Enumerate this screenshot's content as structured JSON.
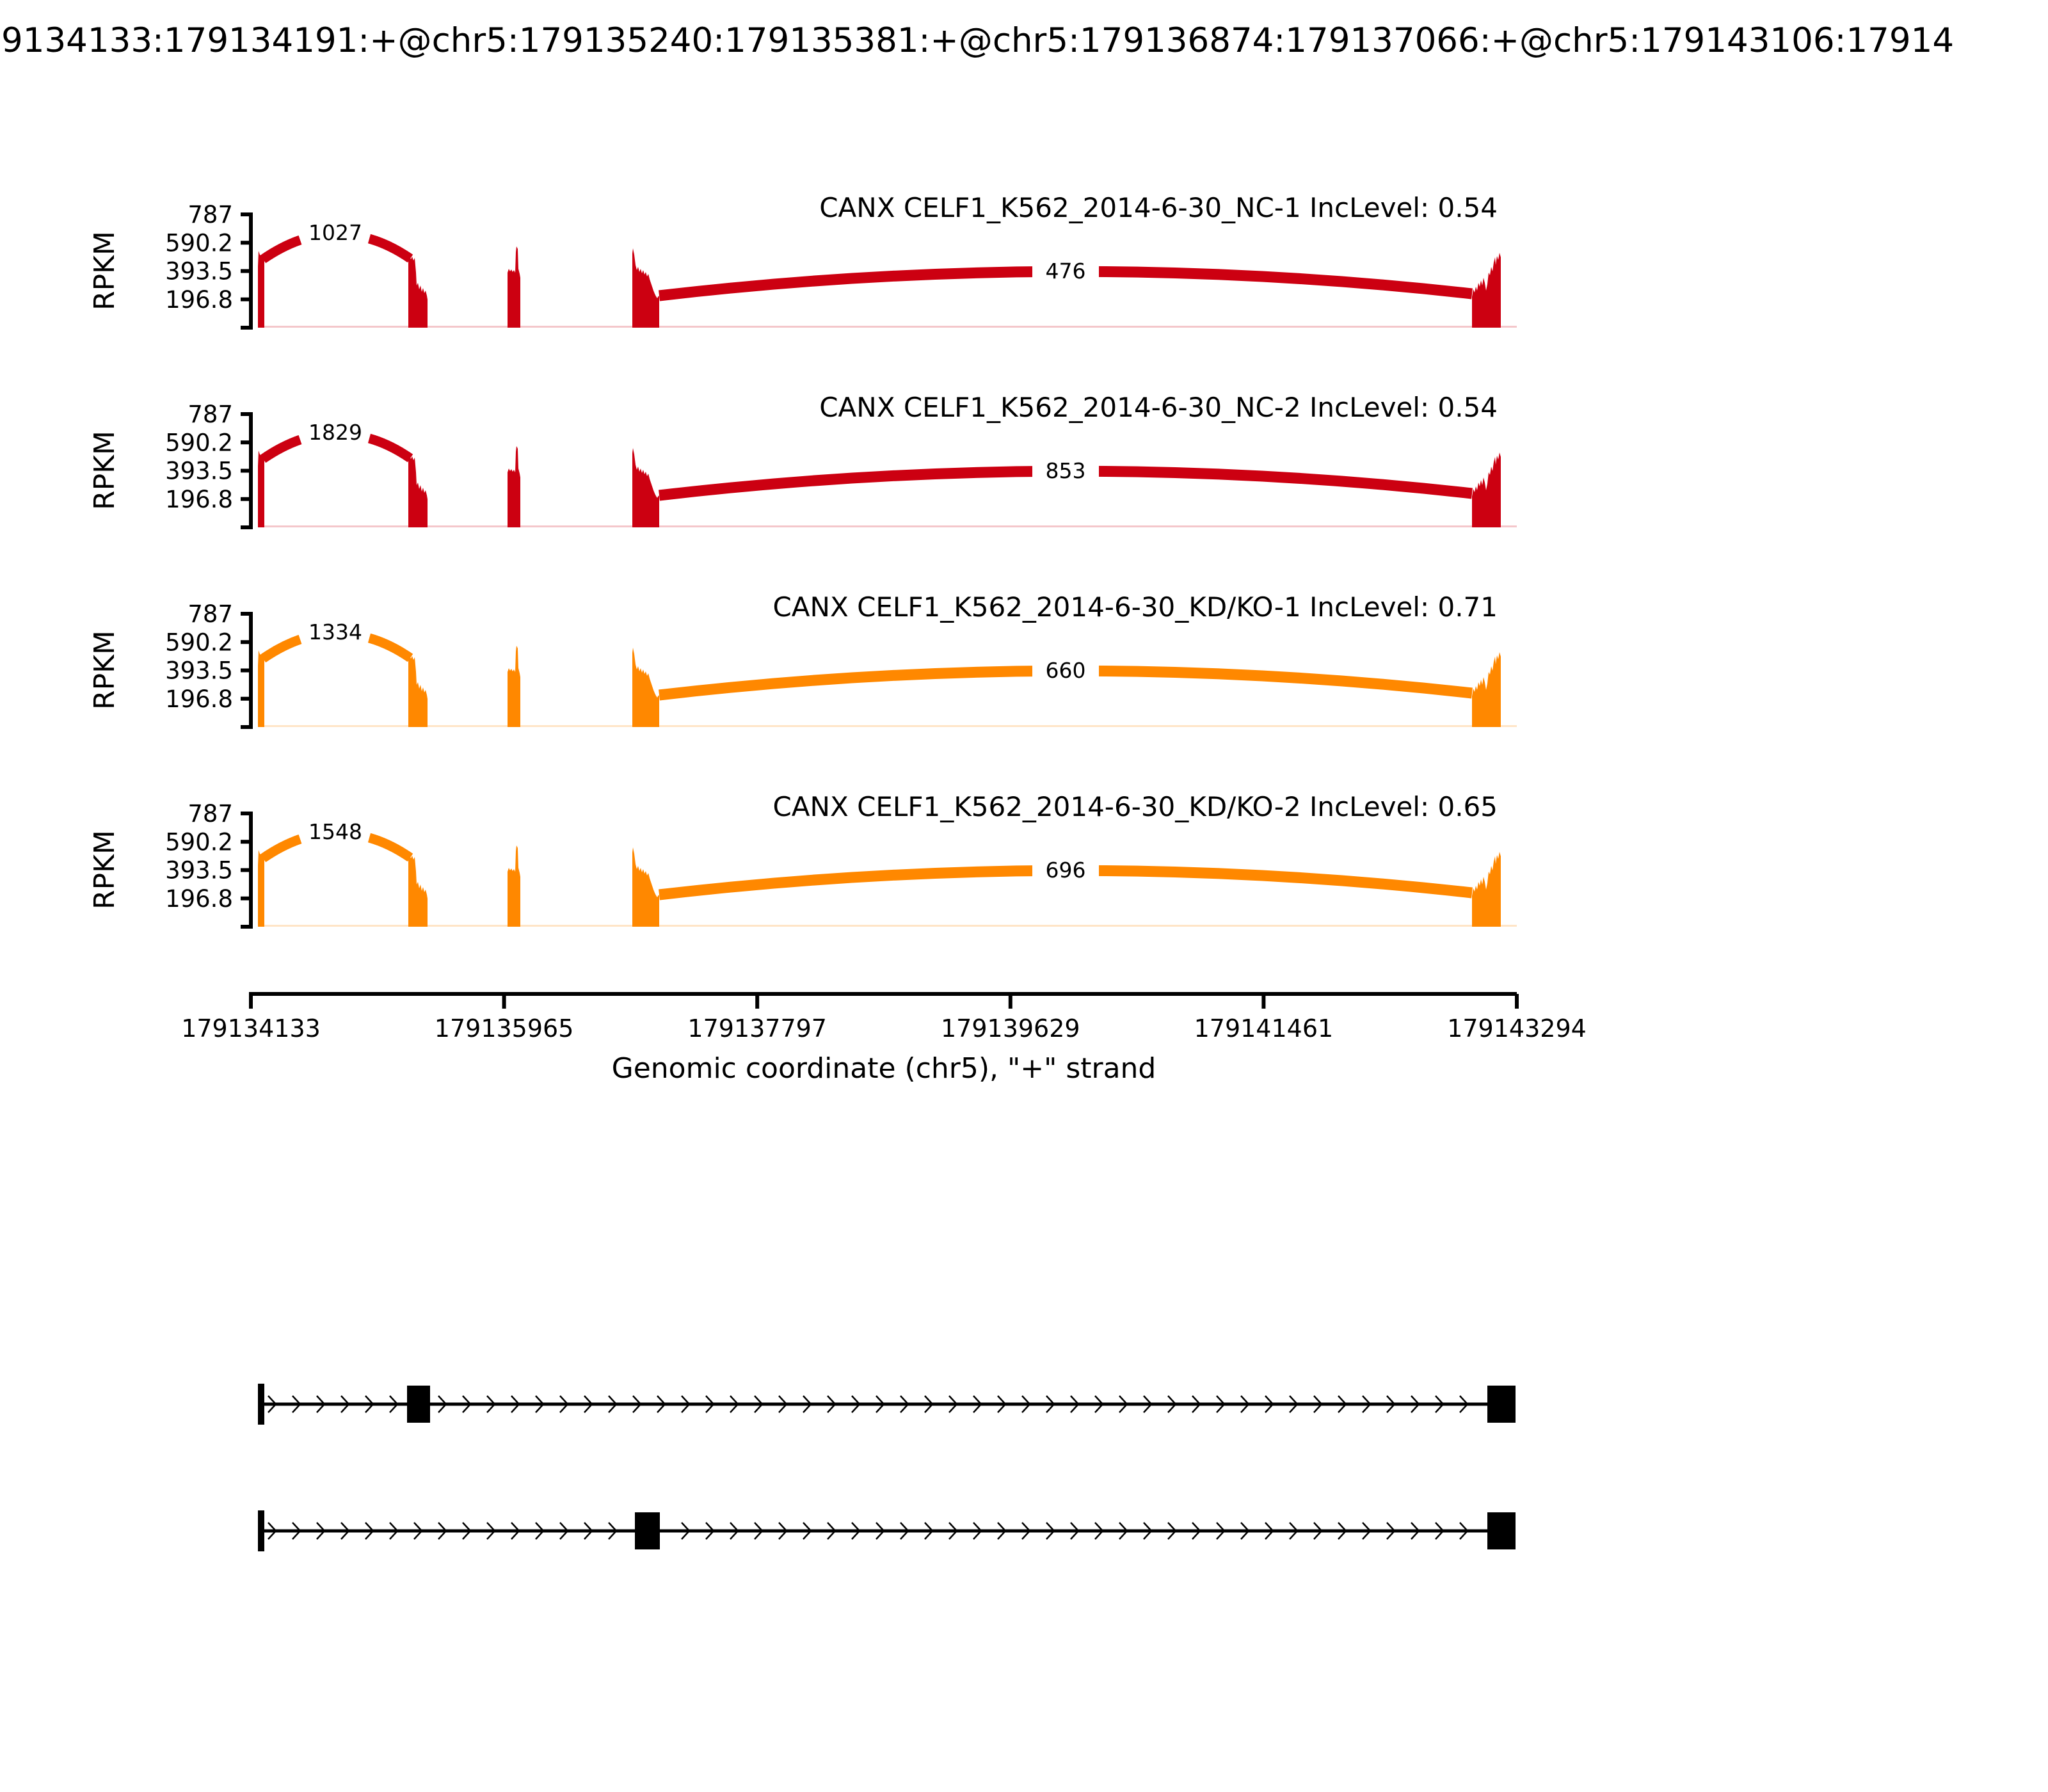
{
  "title": "9134133:179134191:+@chr5:179135240:179135381:+@chr5:179136874:179137066:+@chr5:179143106:17914",
  "chart_data": {
    "type": "sashimi",
    "region": {
      "chrom": "chr5",
      "strand": "+",
      "xlim": [
        179134133,
        179143294
      ]
    },
    "xlabel": "Genomic coordinate (chr5), \"+\" strand",
    "x_ticks": [
      "179134133",
      "179135965",
      "179137797",
      "179139629",
      "179141461",
      "179143294"
    ],
    "ylabel": "RPKM",
    "y_ticks": [
      "787",
      "590.2",
      "393.5",
      "196.8"
    ],
    "ylim": [
      0,
      787
    ],
    "samples": [
      {
        "label": "CANX CELF1_K562_2014-6-30_NC-1 IncLevel: 0.54",
        "inc_level": "0.54",
        "color": "#CC0011",
        "junctions": [
          "1027",
          "476"
        ]
      },
      {
        "label": "CANX CELF1_K562_2014-6-30_NC-2 IncLevel: 0.54",
        "inc_level": "0.54",
        "color": "#CC0011",
        "junctions": [
          "1829",
          "853"
        ]
      },
      {
        "label": "CANX CELF1_K562_2014-6-30_KD/KO-1 IncLevel: 0.71",
        "inc_level": "0.71",
        "color": "#FF8800",
        "junctions": [
          "1334",
          "660"
        ]
      },
      {
        "label": "CANX CELF1_K562_2014-6-30_KD/KO-2 IncLevel: 0.65",
        "inc_level": "0.65",
        "color": "#FF8800",
        "junctions": [
          "1548",
          "696"
        ]
      }
    ],
    "junction_spans": [
      {
        "from": 179134191,
        "to": 179135240
      },
      {
        "from": 179137066,
        "to": 179143106
      }
    ],
    "coverage_exons": [
      [
        179134133,
        179134191
      ],
      [
        179135240,
        179135381
      ],
      [
        179135960,
        179136060
      ],
      [
        179136874,
        179137066
      ],
      [
        179143106,
        179143294
      ]
    ],
    "isoforms": [
      {
        "exons": [
          [
            179134133,
            179134191
          ],
          [
            179135240,
            179135381
          ],
          [
            179143106,
            179143294
          ]
        ]
      },
      {
        "exons": [
          [
            179134133,
            179134191
          ],
          [
            179136874,
            179137066
          ],
          [
            179143106,
            179143294
          ]
        ]
      }
    ]
  }
}
